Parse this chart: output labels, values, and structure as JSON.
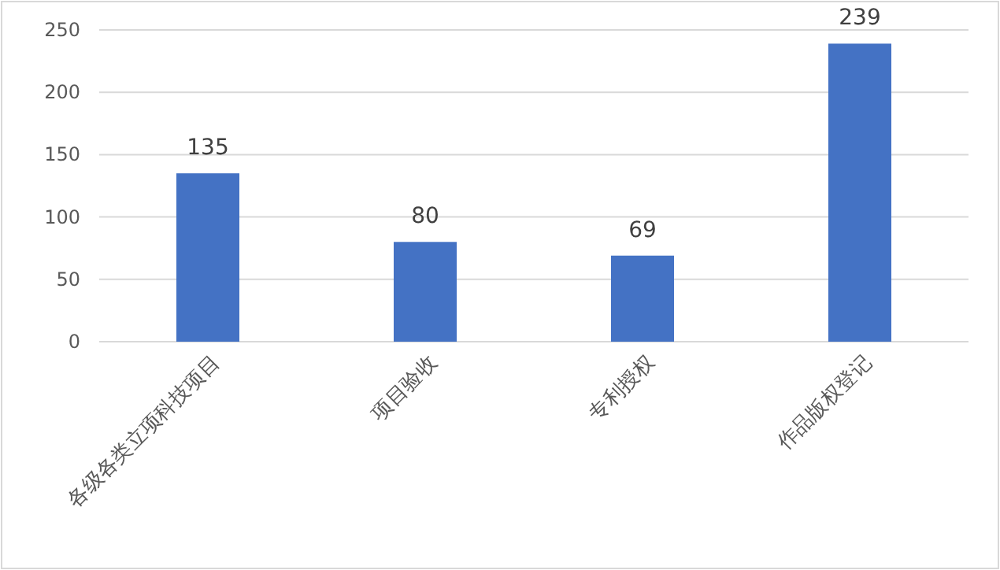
{
  "chart_data": {
    "type": "bar",
    "categories": [
      "各级各类立项科技项目",
      "项目验收",
      "专利授权",
      "作品版权登记"
    ],
    "values": [
      135,
      80,
      69,
      239
    ],
    "color": "#4472c4",
    "ylim": [
      0,
      250
    ],
    "yticks": [
      0,
      50,
      100,
      150,
      200,
      250
    ],
    "grid": "y",
    "data_labels": true
  }
}
